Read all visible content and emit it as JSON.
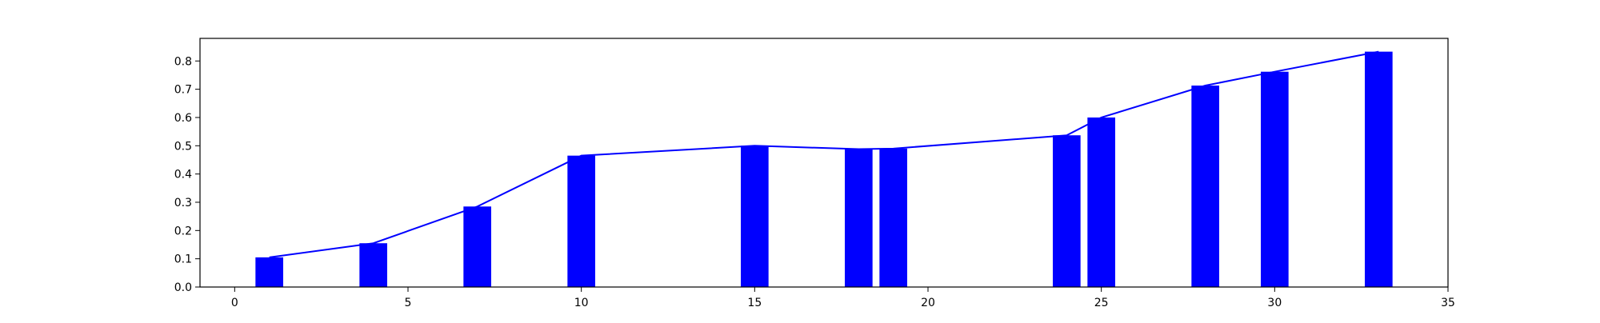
{
  "chart_data": {
    "type": "bar",
    "title": "",
    "xlabel": "",
    "ylabel": "",
    "xlim": [
      -1,
      35
    ],
    "ylim": [
      0,
      0.88
    ],
    "x_ticks": [
      0,
      5,
      10,
      15,
      20,
      25,
      30,
      35
    ],
    "y_ticks": [
      0.0,
      0.1,
      0.2,
      0.3,
      0.4,
      0.5,
      0.6,
      0.7,
      0.8
    ],
    "x_tick_labels": [
      "0",
      "5",
      "10",
      "15",
      "20",
      "25",
      "30",
      "35"
    ],
    "y_tick_labels": [
      "0.0",
      "0.1",
      "0.2",
      "0.3",
      "0.4",
      "0.5",
      "0.6",
      "0.7",
      "0.8"
    ],
    "grid": false,
    "bar_color": "#0000ff",
    "line_color": "#0000ff",
    "bar_width": 0.8,
    "series": [
      {
        "type": "bar",
        "x": [
          1,
          4,
          7,
          10,
          15,
          18,
          19,
          24,
          25,
          28,
          30,
          33
        ],
        "values": [
          0.105,
          0.155,
          0.285,
          0.465,
          0.5,
          0.488,
          0.49,
          0.537,
          0.6,
          0.713,
          0.762,
          0.833
        ]
      },
      {
        "type": "line",
        "x": [
          1,
          4,
          7,
          10,
          15,
          18,
          19,
          24,
          25,
          28,
          30,
          33
        ],
        "values": [
          0.105,
          0.155,
          0.285,
          0.465,
          0.5,
          0.488,
          0.49,
          0.537,
          0.6,
          0.713,
          0.762,
          0.833
        ]
      }
    ]
  }
}
